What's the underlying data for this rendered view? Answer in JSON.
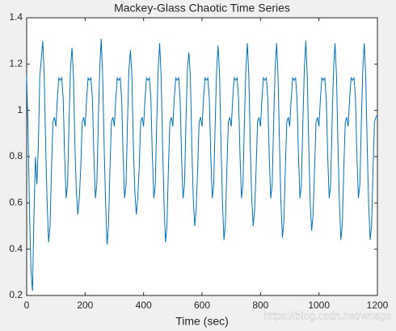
{
  "chart_data": {
    "type": "line",
    "title": "Mackey-Glass Chaotic Time Series",
    "x_label": "Time (sec)",
    "watermark": "https://blog.csdn.net/wnags",
    "x": [
      0,
      5,
      10,
      15,
      20,
      25,
      30,
      35,
      40,
      45,
      50,
      55,
      60,
      65,
      70,
      75,
      80,
      85,
      90,
      95,
      100,
      105,
      110,
      115,
      120,
      125,
      130,
      135,
      140,
      145,
      150,
      155,
      160,
      165,
      170,
      175,
      180,
      185,
      190,
      195,
      200,
      205,
      210,
      215,
      220,
      225,
      230,
      235,
      240,
      245,
      250,
      255,
      260,
      265,
      270,
      275,
      280,
      285,
      290,
      295,
      300,
      305,
      310,
      315,
      320,
      325,
      330,
      335,
      340,
      345,
      350,
      355,
      360,
      365,
      370,
      375,
      380,
      385,
      390,
      395,
      400,
      405,
      410,
      415,
      420,
      425,
      430,
      435,
      440,
      445,
      450,
      455,
      460,
      465,
      470,
      475,
      480,
      485,
      490,
      495,
      500,
      505,
      510,
      515,
      520,
      525,
      530,
      535,
      540,
      545,
      550,
      555,
      560,
      565,
      570,
      575,
      580,
      585,
      590,
      595,
      600,
      605,
      610,
      615,
      620,
      625,
      630,
      635,
      640,
      645,
      650,
      655,
      660,
      665,
      670,
      675,
      680,
      685,
      690,
      695,
      700,
      705,
      710,
      715,
      720,
      725,
      730,
      735,
      740,
      745,
      750,
      755,
      760,
      765,
      770,
      775,
      780,
      785,
      790,
      795,
      800,
      805,
      810,
      815,
      820,
      825,
      830,
      835,
      840,
      845,
      850,
      855,
      860,
      865,
      870,
      875,
      880,
      885,
      890,
      895,
      900,
      905,
      910,
      915,
      920,
      925,
      930,
      935,
      940,
      945,
      950,
      955,
      960,
      965,
      970,
      975,
      980,
      985,
      990,
      995,
      1000,
      1005,
      1010,
      1015,
      1020,
      1025,
      1030,
      1035,
      1040,
      1045,
      1050,
      1055,
      1060,
      1065,
      1070,
      1075,
      1080,
      1085,
      1090,
      1095,
      1100,
      1105,
      1110,
      1115,
      1120,
      1125,
      1130,
      1135,
      1140,
      1145,
      1150,
      1155,
      1160,
      1165,
      1170,
      1175,
      1180,
      1185,
      1190,
      1195,
      1200
    ],
    "series": [
      {
        "name": "Mackey-Glass",
        "color": "#0072bd",
        "values": [
          1.15,
          0.9,
          0.55,
          0.3,
          0.22,
          0.55,
          0.8,
          0.68,
          0.85,
          1.15,
          1.22,
          1.3,
          1.15,
          0.85,
          0.6,
          0.43,
          0.5,
          0.75,
          0.95,
          0.97,
          0.93,
          1.05,
          1.14,
          1.13,
          1.14,
          1.05,
          0.8,
          0.62,
          0.68,
          0.95,
          1.18,
          1.27,
          1.15,
          0.85,
          0.65,
          0.55,
          0.62,
          0.75,
          0.95,
          0.97,
          0.93,
          1.05,
          1.14,
          1.13,
          1.14,
          1.05,
          0.8,
          0.62,
          0.68,
          0.95,
          1.18,
          1.31,
          1.15,
          0.85,
          0.6,
          0.42,
          0.5,
          0.75,
          0.95,
          0.97,
          0.93,
          1.05,
          1.14,
          1.13,
          1.14,
          1.05,
          0.8,
          0.62,
          0.68,
          0.95,
          1.18,
          1.26,
          1.15,
          0.85,
          0.65,
          0.55,
          0.62,
          0.75,
          0.95,
          0.97,
          0.93,
          1.05,
          1.14,
          1.13,
          1.14,
          1.05,
          0.8,
          0.62,
          0.68,
          0.95,
          1.18,
          1.29,
          1.15,
          0.85,
          0.6,
          0.43,
          0.5,
          0.75,
          0.95,
          0.97,
          0.93,
          1.05,
          1.14,
          1.13,
          1.14,
          1.05,
          0.8,
          0.62,
          0.68,
          0.95,
          1.18,
          1.25,
          1.15,
          0.85,
          0.62,
          0.5,
          0.57,
          0.75,
          0.95,
          0.97,
          0.93,
          1.05,
          1.14,
          1.13,
          1.14,
          1.05,
          0.8,
          0.62,
          0.68,
          0.95,
          1.18,
          1.28,
          1.15,
          0.85,
          0.6,
          0.44,
          0.51,
          0.75,
          0.95,
          0.97,
          0.93,
          1.05,
          1.14,
          1.13,
          1.14,
          1.05,
          0.8,
          0.62,
          0.68,
          0.95,
          1.18,
          1.29,
          1.15,
          0.85,
          0.62,
          0.5,
          0.57,
          0.75,
          0.95,
          0.97,
          0.93,
          1.05,
          1.14,
          1.13,
          1.14,
          1.05,
          0.8,
          0.62,
          0.68,
          0.95,
          1.18,
          1.29,
          1.15,
          0.85,
          0.6,
          0.45,
          0.52,
          0.75,
          0.95,
          0.97,
          0.93,
          1.05,
          1.14,
          1.13,
          1.14,
          1.05,
          0.8,
          0.62,
          0.68,
          0.95,
          1.18,
          1.3,
          1.15,
          0.85,
          0.6,
          0.48,
          0.55,
          0.75,
          0.95,
          0.97,
          0.93,
          1.05,
          1.14,
          1.13,
          1.14,
          1.05,
          0.8,
          0.62,
          0.68,
          0.95,
          1.18,
          1.29,
          1.15,
          0.85,
          0.6,
          0.44,
          0.51,
          0.75,
          0.95,
          0.97,
          0.93,
          1.05,
          1.14,
          1.13,
          1.14,
          1.05,
          0.8,
          0.62,
          0.68,
          0.95,
          1.18,
          1.29,
          1.15,
          0.85,
          0.6,
          0.44,
          0.5,
          0.75,
          0.95,
          0.97,
          0.98
        ]
      }
    ],
    "xlim": [
      0,
      1200
    ],
    "xticks": [
      0,
      200,
      400,
      600,
      800,
      1000,
      1200
    ],
    "ylim": [
      0.2,
      1.4
    ],
    "yticks": [
      0.2,
      0.4,
      0.6,
      0.8,
      1,
      1.2,
      1.4
    ],
    "grid": false
  }
}
